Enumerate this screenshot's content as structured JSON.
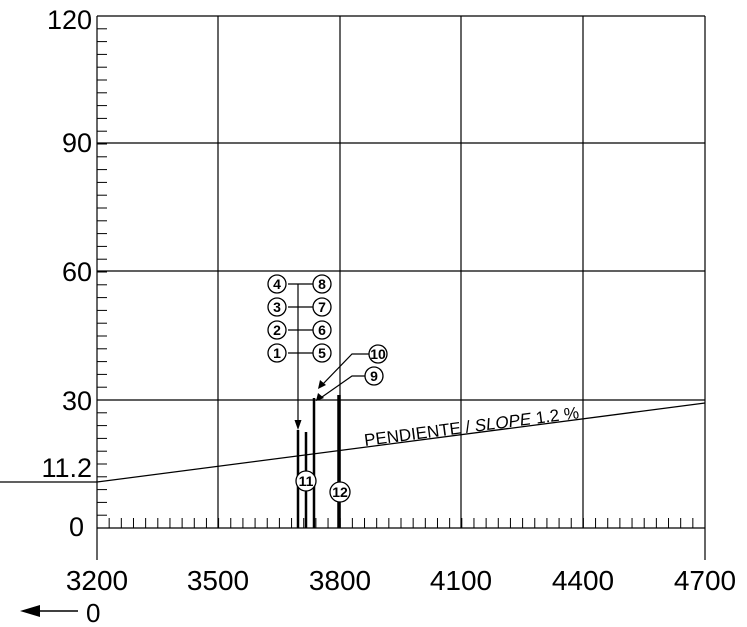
{
  "diagram": {
    "y_axis_ticks": [
      "120",
      "90",
      "60",
      "30",
      "11.2",
      "0"
    ],
    "x_axis_ticks": [
      "3200",
      "3500",
      "3800",
      "4100",
      "4400",
      "4700"
    ],
    "slope_label_main": "PENDIENTE /",
    "slope_label_italic": "SLOPE",
    "slope_label_value": "1.2 %",
    "origin_arrow_label": "0",
    "bubble_labels": [
      "1",
      "2",
      "3",
      "4",
      "5",
      "6",
      "7",
      "8",
      "9",
      "10",
      "11",
      "12"
    ]
  },
  "colors": {
    "ink": "#000000",
    "background": "#ffffff"
  }
}
